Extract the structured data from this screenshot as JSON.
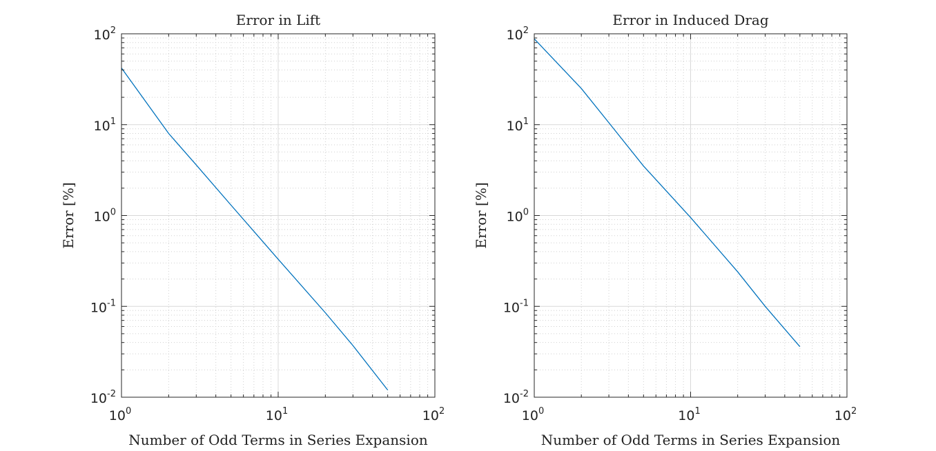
{
  "chart_data": [
    {
      "type": "line",
      "title": "Error in Lift",
      "xlabel": "Number of Odd Terms in Series Expansion",
      "ylabel": "Error [%]",
      "xscale": "log",
      "yscale": "log",
      "xlim": [
        1,
        100
      ],
      "ylim": [
        0.01,
        100
      ],
      "grid": "on (major and minor)",
      "x_ticks": [
        {
          "base": "10",
          "exp": "0"
        },
        {
          "base": "10",
          "exp": "1"
        },
        {
          "base": "10",
          "exp": "2"
        }
      ],
      "y_ticks": [
        {
          "base": "10",
          "exp": "-2"
        },
        {
          "base": "10",
          "exp": "-1"
        },
        {
          "base": "10",
          "exp": "0"
        },
        {
          "base": "10",
          "exp": "1"
        },
        {
          "base": "10",
          "exp": "2"
        }
      ],
      "series": [
        {
          "color": "#0072BD",
          "x": [
            1,
            2,
            3,
            5,
            10,
            20,
            30,
            50
          ],
          "y": [
            42,
            8,
            3.6,
            1.3,
            0.33,
            0.085,
            0.037,
            0.012
          ]
        }
      ]
    },
    {
      "type": "line",
      "title": "Error in Induced Drag",
      "xlabel": "Number of Odd Terms in Series Expansion",
      "ylabel": "Error [%]",
      "xscale": "log",
      "yscale": "log",
      "xlim": [
        1,
        100
      ],
      "ylim": [
        0.01,
        100
      ],
      "grid": "on (major and minor)",
      "x_ticks": [
        {
          "base": "10",
          "exp": "0"
        },
        {
          "base": "10",
          "exp": "1"
        },
        {
          "base": "10",
          "exp": "2"
        }
      ],
      "y_ticks": [
        {
          "base": "10",
          "exp": "-2"
        },
        {
          "base": "10",
          "exp": "-1"
        },
        {
          "base": "10",
          "exp": "0"
        },
        {
          "base": "10",
          "exp": "1"
        },
        {
          "base": "10",
          "exp": "2"
        }
      ],
      "series": [
        {
          "color": "#0072BD",
          "x": [
            1,
            2,
            3,
            5,
            10,
            20,
            30,
            50
          ],
          "y": [
            88,
            25,
            10.5,
            3.5,
            0.95,
            0.24,
            0.1,
            0.036
          ]
        }
      ]
    }
  ]
}
